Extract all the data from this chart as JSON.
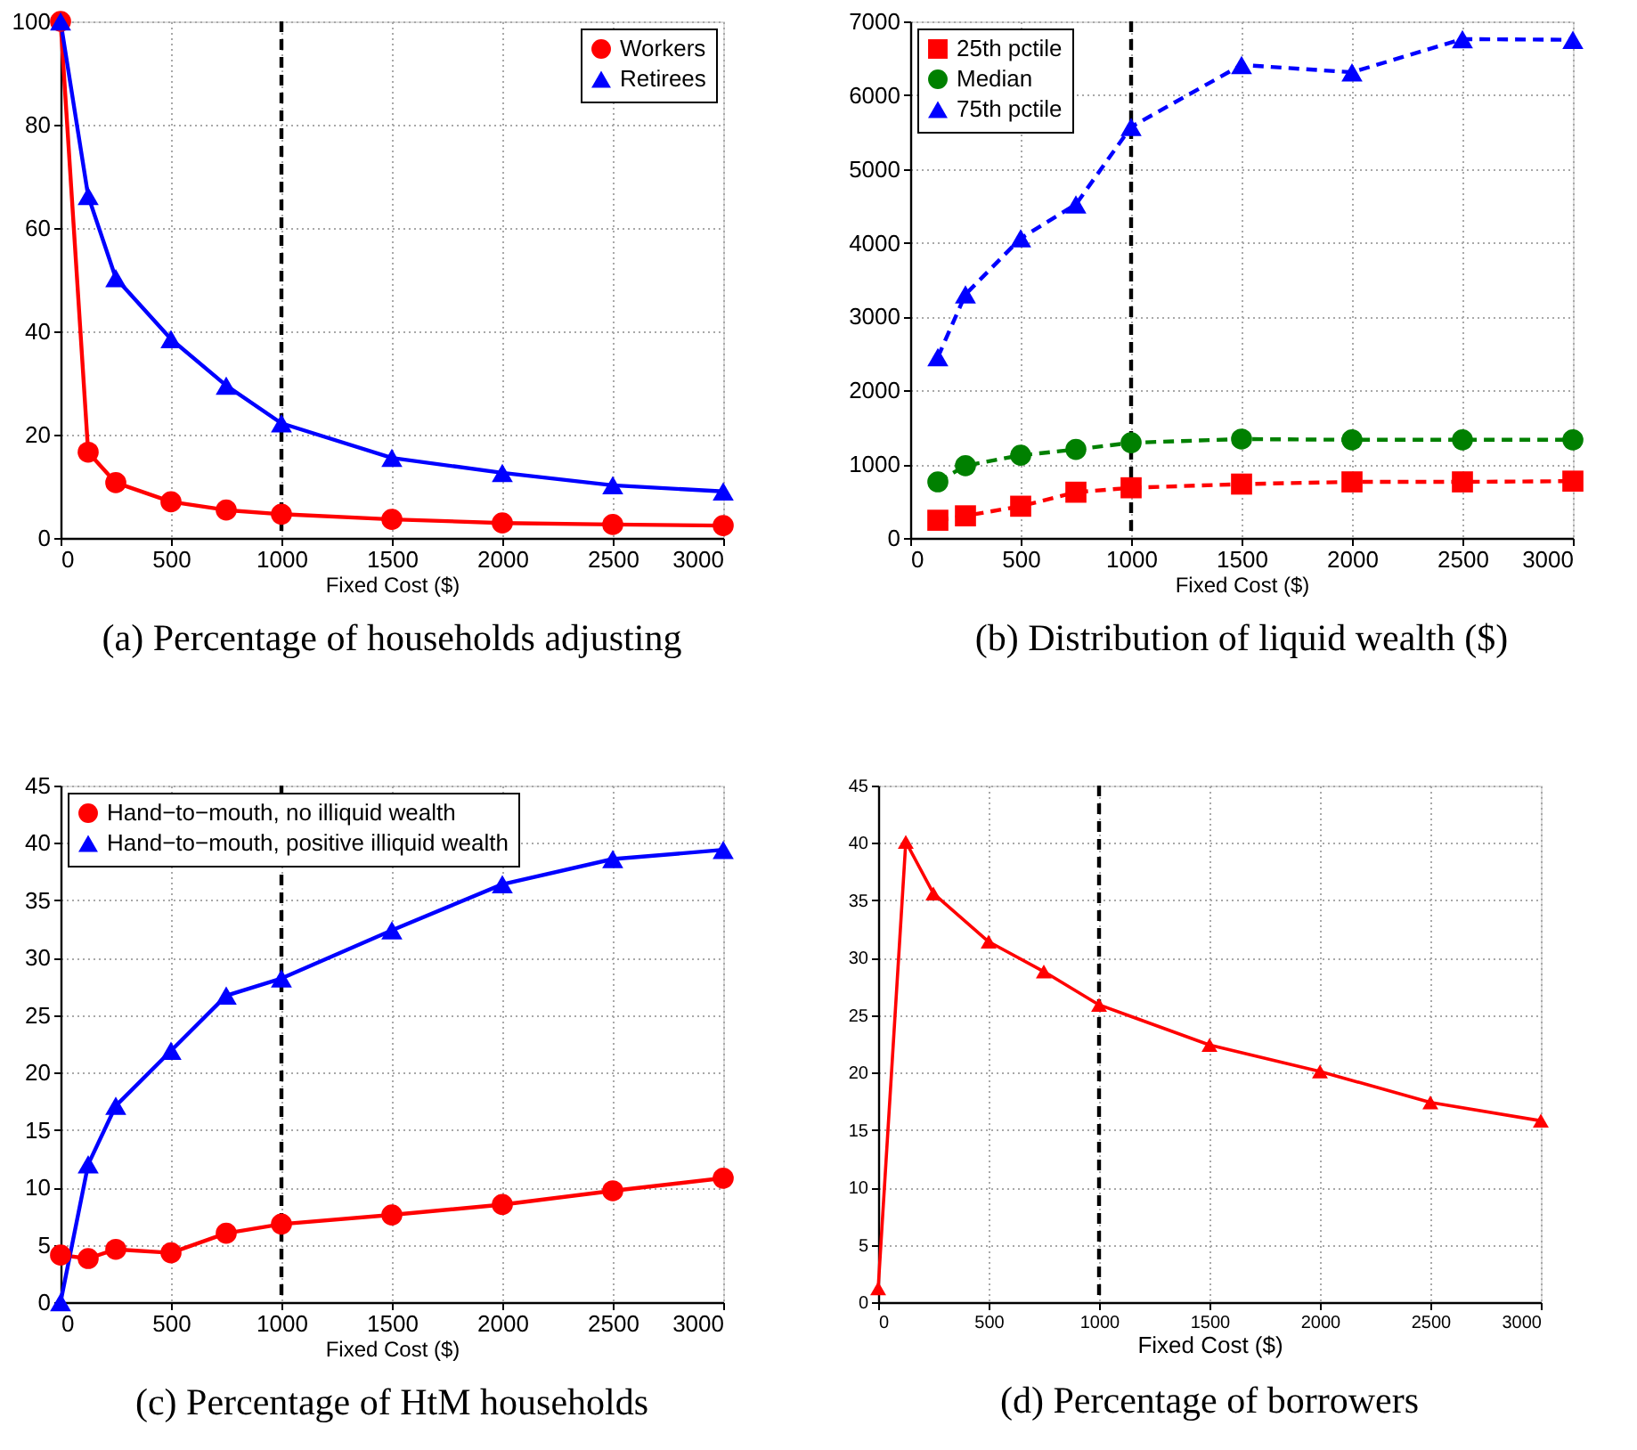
{
  "chart_data": [
    {
      "type": "line",
      "title": "(a) Percentage of households adjusting",
      "xlabel": "Fixed Cost ($)",
      "x": [
        0,
        125,
        250,
        500,
        750,
        1000,
        1500,
        2000,
        2500,
        3000
      ],
      "series": [
        {
          "name": "Workers",
          "color": "#ff0000",
          "marker": "circle",
          "values": [
            100,
            16.6,
            10.7,
            7.0,
            5.4,
            4.6,
            3.6,
            2.9,
            2.6,
            2.4
          ]
        },
        {
          "name": "Retirees",
          "color": "#0000ff",
          "marker": "triangle",
          "values": [
            100,
            66.2,
            50.3,
            38.5,
            29.5,
            22.2,
            15.5,
            12.6,
            10.2,
            9.0
          ]
        }
      ],
      "xlim": [
        0,
        3000
      ],
      "ylim": [
        0,
        100
      ],
      "xticks": [
        0,
        500,
        1000,
        1500,
        2000,
        2500,
        3000
      ],
      "yticks": [
        0,
        20,
        40,
        60,
        80,
        100
      ],
      "grid": true,
      "legend": "top right",
      "ref_lines": [
        {
          "axis": "x",
          "value": 1000,
          "color": "#000000",
          "line_style": "dashed"
        }
      ]
    },
    {
      "type": "line",
      "title": "(b) Distribution of liquid wealth ($)",
      "xlabel": "Fixed Cost ($)",
      "x": [
        125,
        250,
        500,
        750,
        1000,
        1500,
        2000,
        2500,
        3000
      ],
      "series": [
        {
          "name": "25th pctile",
          "color": "#ff0000",
          "marker": "square",
          "values": [
            240,
            300,
            430,
            620,
            680,
            730,
            760,
            760,
            770
          ]
        },
        {
          "name": "Median",
          "color": "#008000",
          "marker": "circle",
          "values": [
            760,
            980,
            1120,
            1200,
            1290,
            1340,
            1330,
            1330,
            1330
          ]
        },
        {
          "name": "75th pctile",
          "color": "#0000ff",
          "marker": "triangle",
          "values": [
            2450,
            3300,
            4060,
            4520,
            5570,
            6410,
            6310,
            6760,
            6750
          ]
        }
      ],
      "xlim": [
        0,
        3000
      ],
      "ylim": [
        0,
        7000
      ],
      "xticks": [
        0,
        500,
        1000,
        1500,
        2000,
        2500,
        3000
      ],
      "yticks": [
        0,
        1000,
        2000,
        3000,
        4000,
        5000,
        6000,
        7000
      ],
      "grid": true,
      "legend": "top left",
      "line_style": "dashed",
      "ref_lines": [
        {
          "axis": "x",
          "value": 1000,
          "color": "#000000",
          "line_style": "dashed"
        }
      ]
    },
    {
      "type": "line",
      "title": "(c) Percentage of HtM households",
      "xlabel": "Fixed Cost ($)",
      "x": [
        0,
        125,
        250,
        500,
        750,
        1000,
        1500,
        2000,
        2500,
        3000
      ],
      "series": [
        {
          "name": "Hand−to−mouth, no illiquid wealth",
          "color": "#ff0000",
          "marker": "circle",
          "values": [
            4.1,
            3.8,
            4.6,
            4.3,
            6.0,
            6.8,
            7.6,
            8.5,
            9.7,
            10.8
          ]
        },
        {
          "name": "Hand−to−mouth, positive illiquid wealth",
          "color": "#0000ff",
          "marker": "triangle",
          "values": [
            0,
            12.0,
            17.1,
            21.9,
            26.7,
            28.2,
            32.4,
            36.4,
            38.6,
            39.4
          ]
        }
      ],
      "xlim": [
        0,
        3000
      ],
      "ylim": [
        0,
        45
      ],
      "xticks": [
        0,
        500,
        1000,
        1500,
        2000,
        2500,
        3000
      ],
      "yticks": [
        0,
        5,
        10,
        15,
        20,
        25,
        30,
        35,
        40,
        45
      ],
      "grid": true,
      "legend": "top left",
      "ref_lines": [
        {
          "axis": "x",
          "value": 1000,
          "color": "#000000",
          "line_style": "dashed"
        }
      ]
    },
    {
      "type": "line",
      "title": "(d) Percentage of borrowers",
      "xlabel": "Fixed Cost ($)",
      "x": [
        0,
        125,
        250,
        500,
        750,
        1000,
        1500,
        2000,
        2500,
        3000
      ],
      "series": [
        {
          "color": "#ff0000",
          "marker": "triangle",
          "values": [
            1.2,
            40.1,
            35.6,
            31.4,
            28.8,
            25.9,
            22.4,
            20.1,
            17.4,
            15.8
          ]
        }
      ],
      "xlim": [
        0,
        3000
      ],
      "ylim": [
        0,
        45
      ],
      "xticks": [
        0,
        500,
        1000,
        1500,
        2000,
        2500,
        3000
      ],
      "yticks": [
        0,
        5,
        10,
        15,
        20,
        25,
        30,
        35,
        40,
        45
      ],
      "grid": true,
      "ref_lines": [
        {
          "axis": "x",
          "value": 1000,
          "color": "#000000",
          "line_style": "dashed"
        }
      ]
    }
  ]
}
